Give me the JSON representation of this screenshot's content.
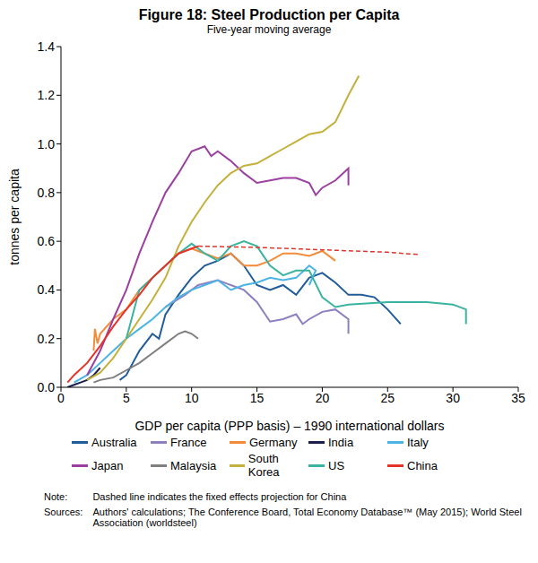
{
  "chart_data": {
    "type": "line",
    "title": "Figure 18: Steel Production per Capita",
    "subtitle": "Five-year moving average",
    "x_label": "GDP per capita (PPP basis) – 1990 international dollars",
    "y_label": "tonnes per capita",
    "xlim": [
      0,
      35
    ],
    "xticks": [
      0,
      5,
      10,
      15,
      20,
      25,
      30,
      35
    ],
    "ylim": [
      0,
      1.4
    ],
    "yticks": [
      {
        "value": 0,
        "label": "0.0"
      },
      0.2,
      0.4,
      0.6,
      0.8,
      {
        "value": 1,
        "label": "1.0"
      },
      1.2,
      1.4
    ],
    "grid": false,
    "legend": "bottom",
    "series": [
      {
        "name": "Australia",
        "color": "#1f5c99",
        "x": [
          4.5,
          5,
          6,
          7,
          7.5,
          8,
          9,
          10,
          11,
          12,
          13,
          14,
          15,
          16,
          17,
          18,
          19,
          20,
          21,
          22,
          23,
          24,
          25,
          26
        ],
        "values": [
          0.03,
          0.05,
          0.15,
          0.22,
          0.2,
          0.3,
          0.38,
          0.45,
          0.5,
          0.52,
          0.55,
          0.5,
          0.42,
          0.4,
          0.42,
          0.38,
          0.45,
          0.47,
          0.43,
          0.38,
          0.38,
          0.37,
          0.32,
          0.26
        ]
      },
      {
        "name": "France",
        "color": "#8e7fc0",
        "x": [
          8,
          9.5,
          10.5,
          12,
          13,
          14,
          15,
          16,
          17,
          18,
          18.5,
          19,
          20,
          21,
          22,
          22
        ],
        "values": [
          0.33,
          0.38,
          0.42,
          0.44,
          0.42,
          0.4,
          0.35,
          0.27,
          0.28,
          0.3,
          0.26,
          0.28,
          0.31,
          0.32,
          0.28,
          0.22
        ]
      },
      {
        "name": "Germany",
        "color": "#f28c3a",
        "x": [
          2.5,
          2.6,
          2.8,
          3,
          4,
          5,
          6,
          7,
          8,
          9,
          10,
          11,
          12,
          13,
          14,
          15,
          16,
          17,
          18,
          19,
          20,
          21
        ],
        "values": [
          0.15,
          0.24,
          0.18,
          0.22,
          0.28,
          0.32,
          0.4,
          0.45,
          0.5,
          0.55,
          0.57,
          0.55,
          0.53,
          0.55,
          0.5,
          0.5,
          0.52,
          0.55,
          0.55,
          0.54,
          0.56,
          0.52
        ]
      },
      {
        "name": "India",
        "color": "#1a1f4d",
        "x": [
          0.5,
          1,
          1.5,
          2,
          2.5,
          3
        ],
        "values": [
          0,
          0.01,
          0.02,
          0.03,
          0.05,
          0.08
        ]
      },
      {
        "name": "Italy",
        "color": "#4bb3e6",
        "x": [
          1,
          2,
          3,
          4,
          5,
          6,
          7,
          8,
          9,
          10,
          11,
          12,
          13,
          14,
          15,
          16,
          17,
          18,
          19,
          19.5,
          19
        ],
        "values": [
          0.02,
          0.05,
          0.1,
          0.15,
          0.2,
          0.24,
          0.28,
          0.33,
          0.37,
          0.4,
          0.42,
          0.44,
          0.4,
          0.42,
          0.43,
          0.45,
          0.44,
          0.45,
          0.5,
          0.48,
          0.42
        ]
      },
      {
        "name": "Japan",
        "color": "#9b3fa0",
        "x": [
          2,
          3,
          4,
          5,
          6,
          7,
          8,
          9,
          10,
          11,
          11.5,
          12,
          13,
          14,
          15,
          16,
          17,
          18,
          19,
          19.5,
          20,
          21,
          22,
          22
        ],
        "values": [
          0.05,
          0.15,
          0.28,
          0.4,
          0.55,
          0.68,
          0.8,
          0.88,
          0.97,
          0.99,
          0.95,
          0.97,
          0.93,
          0.88,
          0.84,
          0.85,
          0.86,
          0.86,
          0.84,
          0.79,
          0.82,
          0.85,
          0.9,
          0.83
        ]
      },
      {
        "name": "Malaysia",
        "color": "#7f7f7f",
        "x": [
          2.5,
          3,
          4,
          5,
          6,
          7,
          8,
          9,
          9.5,
          10,
          10.5
        ],
        "values": [
          0.02,
          0.03,
          0.04,
          0.07,
          0.1,
          0.14,
          0.18,
          0.22,
          0.23,
          0.22,
          0.2
        ]
      },
      {
        "name": "South Korea",
        "color": "#c4b03a",
        "x": [
          2,
          3,
          4,
          5,
          6,
          7,
          8,
          9,
          10,
          11,
          12,
          13,
          14,
          15,
          16,
          17,
          18,
          19,
          20,
          21,
          22,
          22.8
        ],
        "values": [
          0.03,
          0.06,
          0.12,
          0.2,
          0.28,
          0.36,
          0.45,
          0.58,
          0.68,
          0.76,
          0.83,
          0.88,
          0.91,
          0.92,
          0.95,
          0.98,
          1.01,
          1.04,
          1.05,
          1.09,
          1.2,
          1.28
        ]
      },
      {
        "name": "US",
        "color": "#3bb3a0",
        "x": [
          5,
          5.5,
          6,
          7,
          8,
          9,
          10,
          11,
          12,
          13,
          14,
          15,
          16,
          17,
          18,
          19,
          20,
          21,
          22,
          25,
          28,
          30,
          31,
          31
        ],
        "values": [
          0.2,
          0.3,
          0.4,
          0.45,
          0.5,
          0.55,
          0.59,
          0.55,
          0.52,
          0.58,
          0.6,
          0.58,
          0.5,
          0.46,
          0.48,
          0.48,
          0.37,
          0.33,
          0.34,
          0.35,
          0.35,
          0.34,
          0.32,
          0.26
        ]
      },
      {
        "name": "China",
        "color": "#e5332a",
        "x": [
          0.5,
          1,
          2,
          3,
          4,
          5,
          6,
          7,
          8,
          9,
          10,
          10.5
        ],
        "values": [
          0.02,
          0.05,
          0.1,
          0.17,
          0.25,
          0.32,
          0.38,
          0.45,
          0.5,
          0.55,
          0.57,
          0.58
        ],
        "projection": {
          "line_style": "dashed",
          "x": [
            10.5,
            15,
            20,
            25,
            27.5
          ],
          "values": [
            0.58,
            0.575,
            0.565,
            0.555,
            0.545
          ]
        }
      }
    ],
    "notes": [
      {
        "label": "Note:",
        "text": "Dashed line indicates the fixed effects projection for China"
      },
      {
        "label": "Sources:",
        "text": "Authors' calculations; The Conference Board, Total Economy Database™ (May 2015); World Steel Association (worldsteel)"
      }
    ]
  }
}
